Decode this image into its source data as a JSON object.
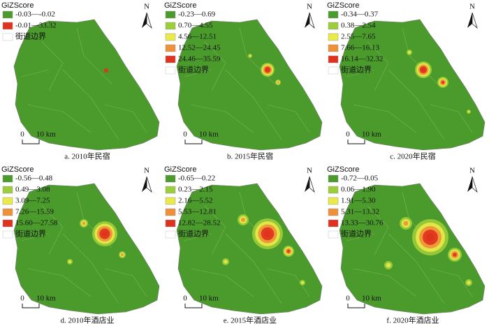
{
  "panels": [
    {
      "legend_title": "GiZScore",
      "legend": [
        {
          "label": "-0.03—-0.02",
          "color": "#4a9a2c"
        },
        {
          "label": "-0.01—33.32",
          "color": "#e0321e"
        }
      ],
      "boundary_label": "街道边界",
      "north": "N",
      "scale_zero": "0",
      "scale_label": "10 km",
      "caption": "a. 2010年民宿"
    },
    {
      "legend_title": "GiZScore",
      "legend": [
        {
          "label": "-0.23—0.69",
          "color": "#4a9a2c"
        },
        {
          "label": "0.70—4.55",
          "color": "#9ccd3a"
        },
        {
          "label": "4.56—12.51",
          "color": "#eaea48"
        },
        {
          "label": "12.52—24.45",
          "color": "#f09038"
        },
        {
          "label": "24.46—35.59",
          "color": "#e0321e"
        }
      ],
      "boundary_label": "街道边界",
      "north": "N",
      "scale_zero": "0",
      "scale_label": "10 km",
      "caption": "b. 2015年民宿"
    },
    {
      "legend_title": "GiZScore",
      "legend": [
        {
          "label": "-0.34—0.37",
          "color": "#4a9a2c"
        },
        {
          "label": "0.38—2.54",
          "color": "#9ccd3a"
        },
        {
          "label": "2.55—7.65",
          "color": "#eaea48"
        },
        {
          "label": "7.66—16.13",
          "color": "#f09038"
        },
        {
          "label": "16.14—32.32",
          "color": "#e0321e"
        }
      ],
      "boundary_label": "街道边界",
      "north": "N",
      "scale_zero": "0",
      "scale_label": "10 km",
      "caption": "c. 2020年民宿"
    },
    {
      "legend_title": "GiZScore",
      "legend": [
        {
          "label": "-0.56—0.48",
          "color": "#4a9a2c"
        },
        {
          "label": "0.49—3.08",
          "color": "#9ccd3a"
        },
        {
          "label": "3.09—7.25",
          "color": "#eaea48"
        },
        {
          "label": "7.26—15.59",
          "color": "#f09038"
        },
        {
          "label": "15.60—27.58",
          "color": "#e0321e"
        }
      ],
      "boundary_label": "街道边界",
      "north": "N",
      "scale_zero": "0",
      "scale_label": "10 km",
      "caption": "d. 2010年酒店业"
    },
    {
      "legend_title": "GiZScore",
      "legend": [
        {
          "label": "-0.65—0.22",
          "color": "#4a9a2c"
        },
        {
          "label": "0.23—2.15",
          "color": "#9ccd3a"
        },
        {
          "label": "2.16—5.52",
          "color": "#eaea48"
        },
        {
          "label": "5.53—12.81",
          "color": "#f09038"
        },
        {
          "label": "12.82—28.52",
          "color": "#e0321e"
        }
      ],
      "boundary_label": "街道边界",
      "north": "N",
      "scale_zero": "0",
      "scale_label": "10 km",
      "caption": "e. 2015年酒店业"
    },
    {
      "legend_title": "GiZScore",
      "legend": [
        {
          "label": "-0.72—0.05",
          "color": "#4a9a2c"
        },
        {
          "label": "0.06—1.90",
          "color": "#9ccd3a"
        },
        {
          "label": "1.91—5.30",
          "color": "#eaea48"
        },
        {
          "label": "5.31—13.32",
          "color": "#f09038"
        },
        {
          "label": "13.33—30.76",
          "color": "#e0321e"
        }
      ],
      "boundary_label": "街道边界",
      "north": "N",
      "scale_zero": "0",
      "scale_label": "10 km",
      "caption": "f. 2020年酒店业"
    }
  ]
}
